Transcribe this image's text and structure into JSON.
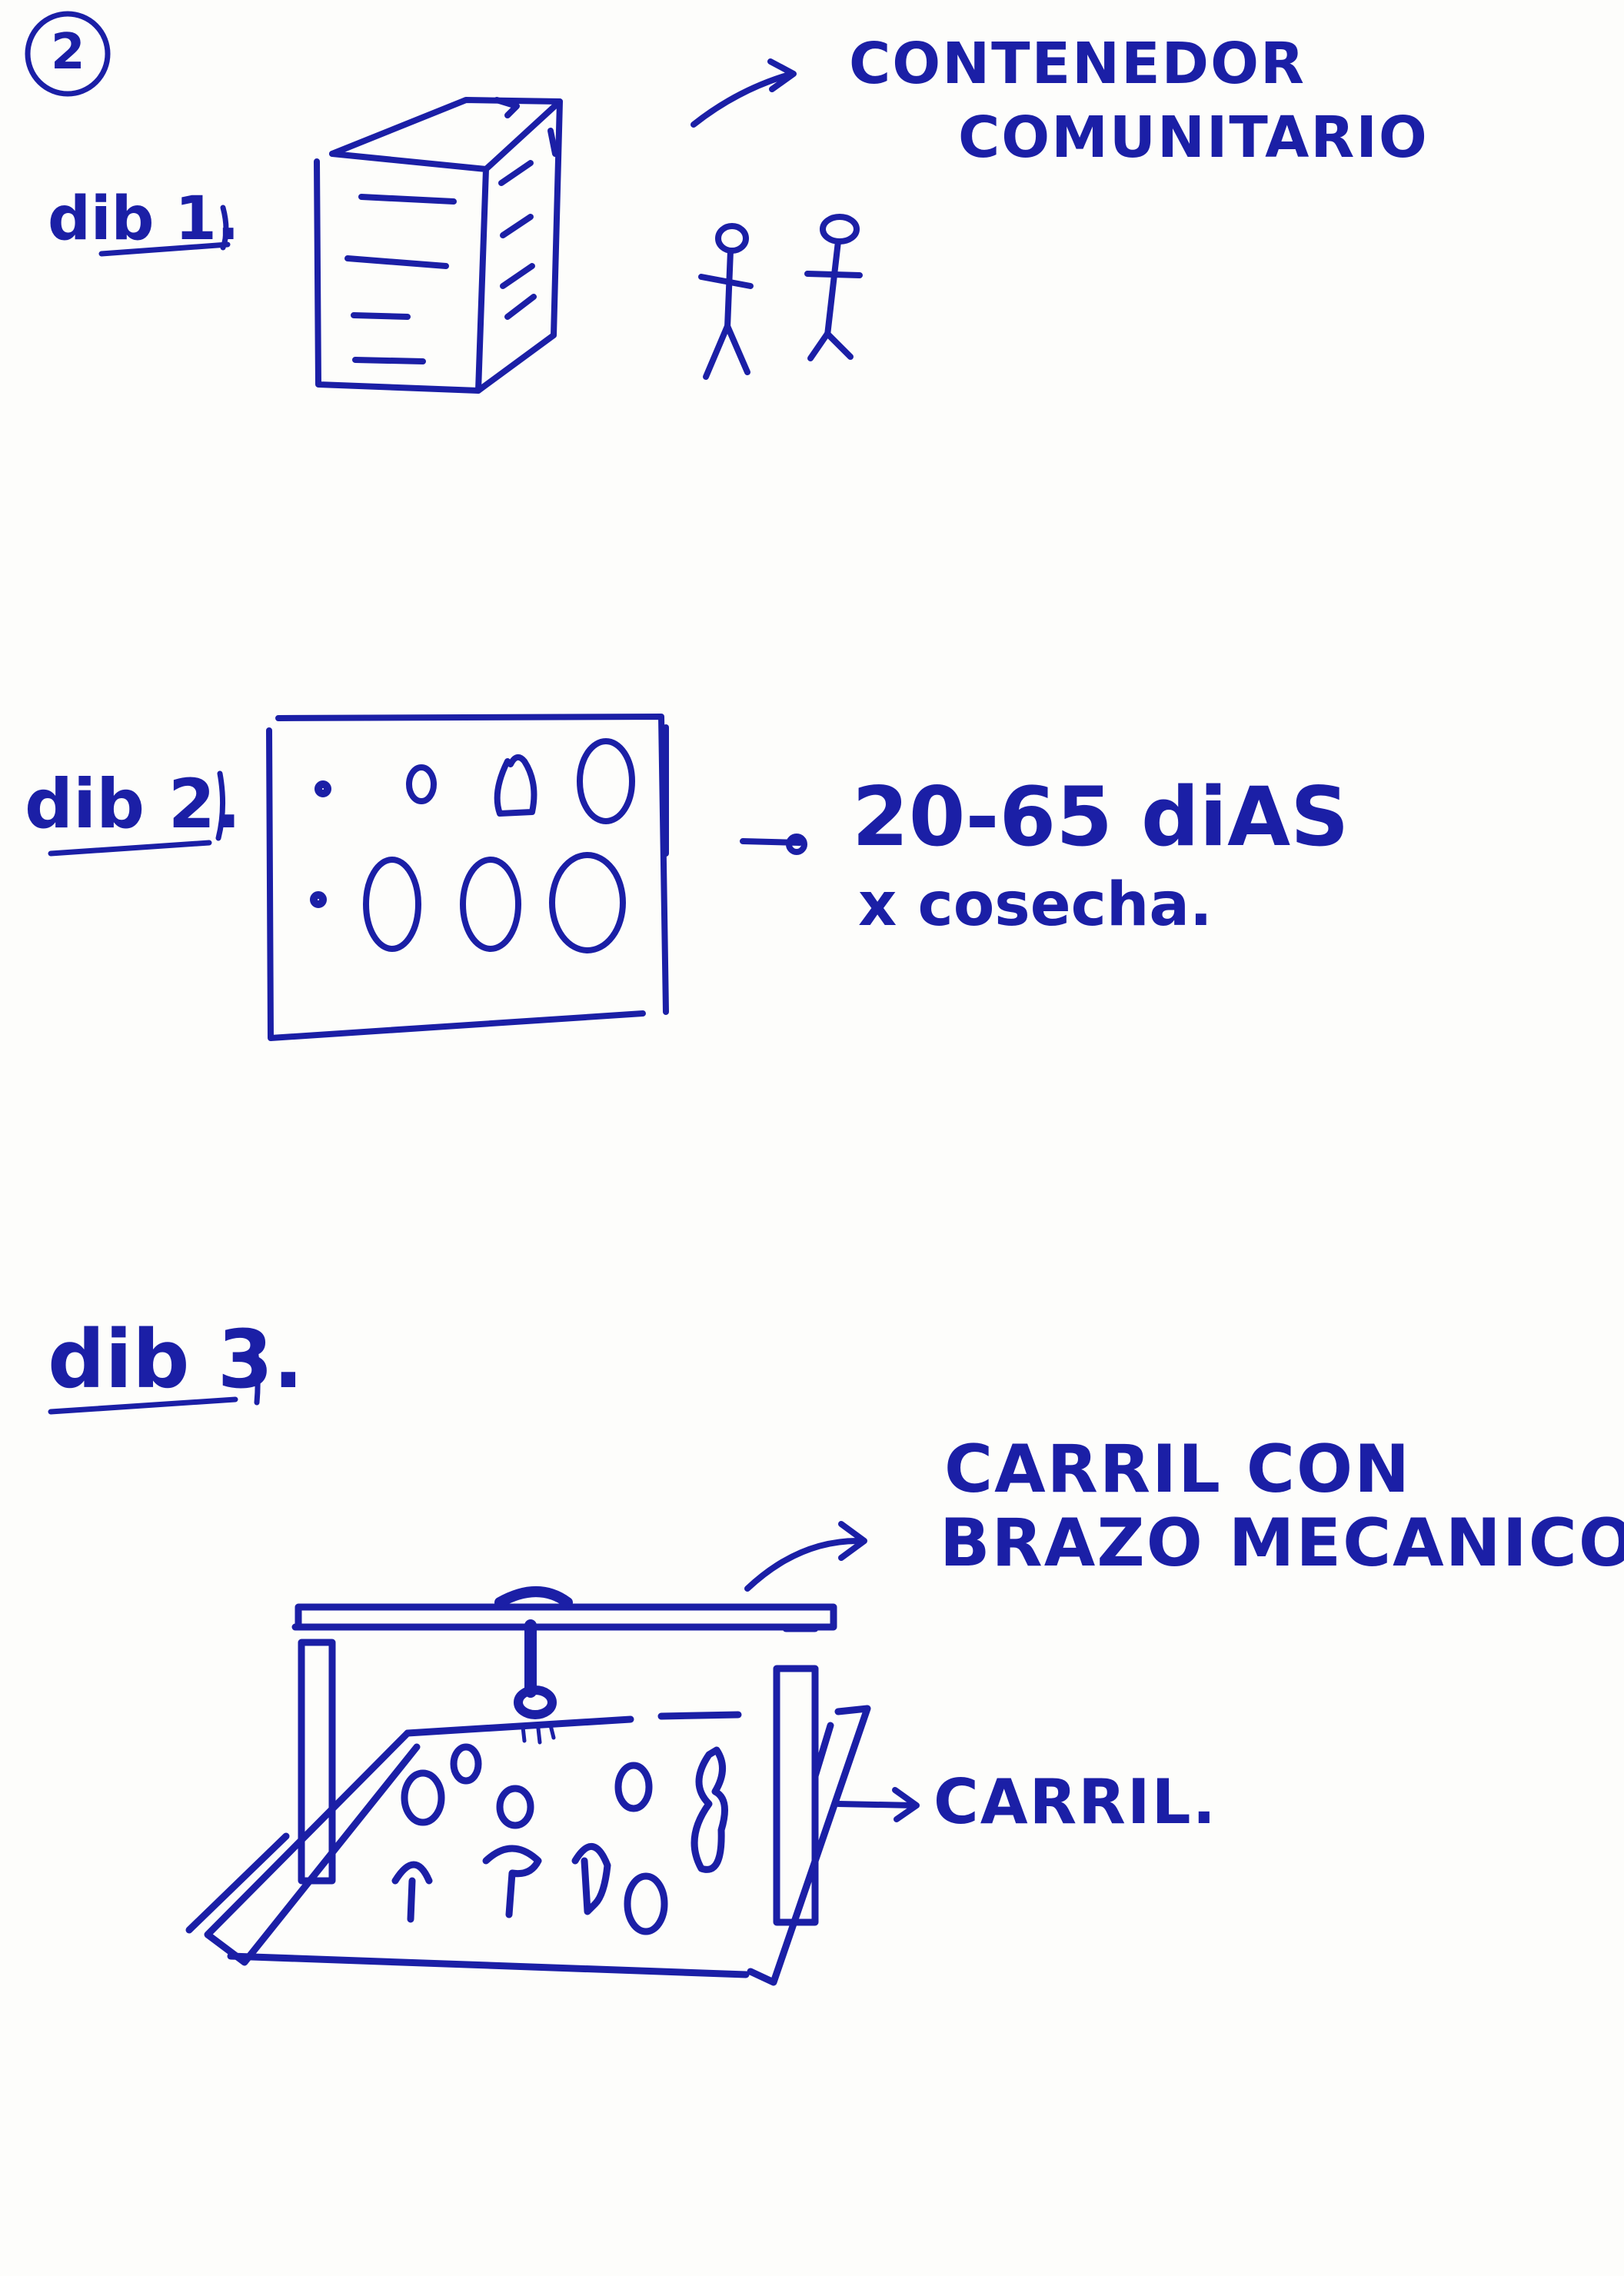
{
  "colors": {
    "ink": "#1b1fa6",
    "paper": "#fdfdfb"
  },
  "page": {
    "number": "2"
  },
  "sketch1": {
    "label": "dib 1.",
    "annotation_line1": "CONTENEDOR",
    "annotation_line2": "COMUNITARIO"
  },
  "sketch2": {
    "label": "dib 2.",
    "annotation_line1": "20-65 diAS",
    "annotation_line2": "x cosecha."
  },
  "sketch3": {
    "label": "dib 3.",
    "annotation_top_line1": "CARRIL CON",
    "annotation_top_line2": "BRAZO MECANICO.",
    "annotation_side": "CARRIL."
  }
}
